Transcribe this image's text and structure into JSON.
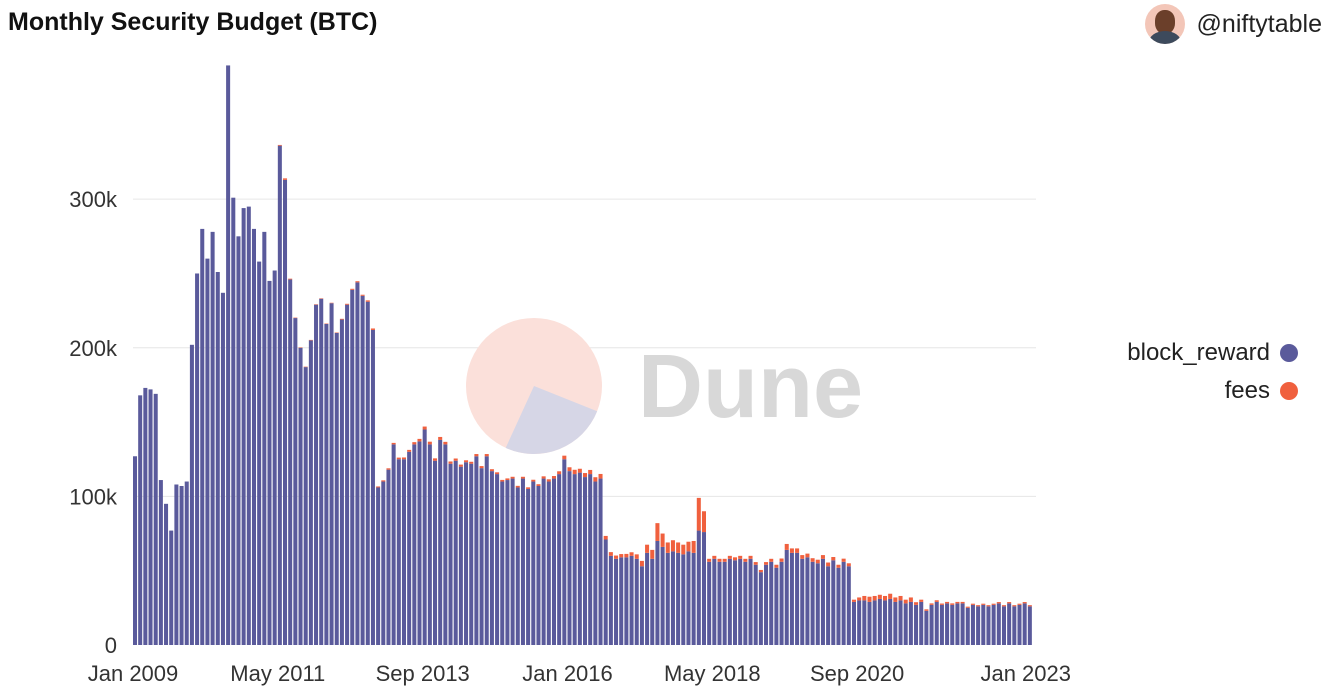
{
  "header": {
    "title": "Monthly Security Budget (BTC)",
    "author": "@niftytable"
  },
  "watermark": {
    "text": "Dune"
  },
  "colors": {
    "block_reward": "#5a5a9b",
    "fees": "#f0603e",
    "grid": "#e6e6e6",
    "watermark_text": "#d8d8d8",
    "watermark_pie_a": "#fbe0da",
    "watermark_pie_b": "#d6d6e6"
  },
  "chart_data": {
    "type": "bar",
    "stacked": true,
    "title": "Monthly Security Budget (BTC)",
    "x_tick_labels": [
      "Jan 2009",
      "May 2011",
      "Sep 2013",
      "Jan 2016",
      "May 2018",
      "Sep 2020",
      "Jan 2023"
    ],
    "y_tick_labels": [
      "0",
      "100k",
      "200k",
      "300k"
    ],
    "ylim": [
      0,
      395000
    ],
    "grid": true,
    "legend_position": "right",
    "series": [
      {
        "name": "block_reward",
        "values": [
          127000,
          168000,
          173000,
          172000,
          169000,
          111000,
          95000,
          77000,
          108000,
          107000,
          110000,
          202000,
          250000,
          280000,
          260000,
          278000,
          251000,
          237000,
          390000,
          301000,
          275000,
          294000,
          295000,
          280000,
          258000,
          278000,
          245000,
          252000,
          336000,
          313000,
          246000,
          220000,
          200000,
          187000,
          205000,
          229000,
          233000,
          216000,
          230000,
          210000,
          219000,
          229000,
          239000,
          244000,
          235000,
          231000,
          212000,
          106000,
          110000,
          118000,
          135000,
          125000,
          125000,
          130000,
          135000,
          137000,
          145000,
          135000,
          124000,
          138000,
          135000,
          122000,
          124000,
          120000,
          123000,
          122000,
          127000,
          119000,
          127000,
          117000,
          115000,
          110000,
          111000,
          112000,
          106000,
          112000,
          105000,
          110000,
          107000,
          112000,
          110000,
          112000,
          115000,
          125000,
          117000,
          115000,
          116000,
          113000,
          115000,
          110000,
          112000,
          71000,
          60000,
          58000,
          59000,
          59000,
          60000,
          58000,
          53000,
          62000,
          58000,
          70000,
          66000,
          62000,
          63000,
          62000,
          61000,
          63000,
          62000,
          77000,
          76000,
          56000,
          58000,
          56000,
          56000,
          58000,
          57000,
          58000,
          56000,
          58000,
          54000,
          49000,
          54000,
          56000,
          52000,
          56000,
          64000,
          62000,
          62000,
          58000,
          59000,
          56000,
          55000,
          58000,
          53000,
          57000,
          52000,
          56000,
          53000,
          29000,
          30000,
          30000,
          29000,
          30000,
          31000,
          30000,
          31000,
          29000,
          30000,
          28000,
          29000,
          27000,
          29000,
          23000,
          27000,
          29000,
          27000,
          28000,
          27000,
          28000,
          28000,
          25000,
          27000,
          26000,
          27000,
          26000,
          27000,
          28000,
          26000,
          28000,
          26000,
          27000,
          28000,
          26000
        ],
        "fees": [
          0,
          0,
          0,
          0,
          0,
          0,
          0,
          0,
          0,
          0,
          0,
          0,
          0,
          0,
          0,
          0,
          0,
          0,
          0,
          0,
          0,
          0,
          0,
          0,
          0,
          0,
          0,
          0,
          500,
          1000,
          500,
          300,
          300,
          300,
          300,
          300,
          300,
          300,
          300,
          300,
          500,
          600,
          700,
          800,
          700,
          900,
          1000,
          700,
          800,
          900,
          1000,
          1100,
          1200,
          1300,
          1500,
          1700,
          2000,
          1800,
          1600,
          2000,
          1700,
          1500,
          1500,
          1400,
          1300,
          1300,
          1500,
          1400,
          1500,
          1300,
          1200,
          1100,
          1100,
          1200,
          1100,
          1200,
          1100,
          1200,
          1200,
          1500,
          1500,
          1700,
          1900,
          2400,
          2600,
          2900,
          2600,
          2700,
          2800,
          2900,
          3100,
          2400,
          2500,
          2200,
          2200,
          2300,
          2400,
          3000,
          3600,
          5500,
          6000,
          12000,
          9000,
          7000,
          7500,
          7000,
          6500,
          6500,
          8000,
          22000,
          14000,
          2000,
          2000,
          2000,
          2000,
          2000,
          2000,
          2000,
          2000,
          2000,
          1800,
          1500,
          1800,
          2000,
          2000,
          2200,
          4000,
          3000,
          3000,
          2500,
          2500,
          2400,
          2400,
          2500,
          2500,
          2200,
          2000,
          2100,
          2000,
          1500,
          2000,
          3000,
          3500,
          3000,
          2800,
          3000,
          3500,
          3000,
          3000,
          2500,
          3000,
          1800,
          1500,
          1000,
          1000,
          1100,
          900,
          1000,
          1000,
          1000,
          1000,
          800,
          800,
          800,
          800,
          800,
          800,
          900,
          800,
          900,
          800,
          800,
          900,
          800
        ]
      }
    ]
  },
  "legend": {
    "items": [
      {
        "label": "block_reward",
        "color": "#5a5a9b"
      },
      {
        "label": "fees",
        "color": "#f0603e"
      }
    ]
  }
}
